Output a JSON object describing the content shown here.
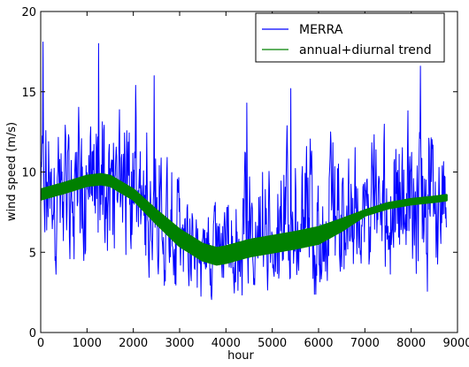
{
  "chart_data": {
    "type": "line",
    "xlabel": "hour",
    "ylabel": "wind speed (m/s)",
    "xlim": [
      0,
      9000
    ],
    "ylim": [
      0,
      20
    ],
    "x_ticks": [
      0,
      1000,
      2000,
      3000,
      4000,
      5000,
      6000,
      7000,
      8000,
      9000
    ],
    "y_ticks": [
      0,
      5,
      10,
      15,
      20
    ],
    "grid": false,
    "legend_position": "top-right",
    "series": [
      {
        "name": "MERRA",
        "color": "#0000ff",
        "style": "thin noisy hourly line",
        "x_range": [
          0,
          8760
        ],
        "envelope_x": [
          0,
          500,
          1000,
          1500,
          2000,
          2500,
          3000,
          3500,
          4000,
          4500,
          5000,
          5500,
          6000,
          6500,
          7000,
          7500,
          8000,
          8500,
          8760
        ],
        "envelope_min": [
          2.5,
          1.0,
          0.5,
          1.0,
          1.2,
          0.8,
          0.3,
          0.2,
          0.2,
          0.3,
          0.5,
          0.3,
          0.1,
          0.2,
          0.5,
          0.5,
          0.8,
          0.5,
          0.2
        ],
        "envelope_max": [
          18.1,
          15.0,
          16.5,
          17.5,
          14.5,
          16.0,
          12.5,
          9.0,
          9.5,
          14.0,
          14.0,
          15.0,
          14.0,
          13.5,
          15.0,
          15.0,
          16.5,
          15.5,
          13.5
        ],
        "noted_peaks": [
          {
            "x": 50,
            "y": 18.1
          },
          {
            "x": 1250,
            "y": 18.0
          },
          {
            "x": 2050,
            "y": 15.4
          },
          {
            "x": 2450,
            "y": 16.0
          },
          {
            "x": 4450,
            "y": 14.3
          },
          {
            "x": 5400,
            "y": 15.2
          },
          {
            "x": 8200,
            "y": 16.6
          }
        ]
      },
      {
        "name": "annual+diurnal trend",
        "color": "#008000",
        "style": "thick band (diurnal variation)",
        "x": [
          0,
          500,
          1000,
          1300,
          1500,
          2000,
          2500,
          3000,
          3500,
          3800,
          4000,
          4500,
          5000,
          5500,
          6000,
          6500,
          7000,
          7500,
          8000,
          8500,
          8760
        ],
        "y": [
          8.6,
          9.0,
          9.45,
          9.55,
          9.45,
          8.6,
          7.2,
          5.9,
          5.0,
          4.75,
          4.85,
          5.25,
          5.5,
          5.75,
          6.05,
          6.7,
          7.45,
          7.9,
          8.15,
          8.3,
          8.4
        ],
        "band_halfwidth": [
          0.3,
          0.3,
          0.3,
          0.3,
          0.3,
          0.3,
          0.4,
          0.5,
          0.5,
          0.5,
          0.5,
          0.5,
          0.5,
          0.5,
          0.5,
          0.35,
          0.15,
          0.15,
          0.15,
          0.15,
          0.15
        ]
      }
    ]
  }
}
